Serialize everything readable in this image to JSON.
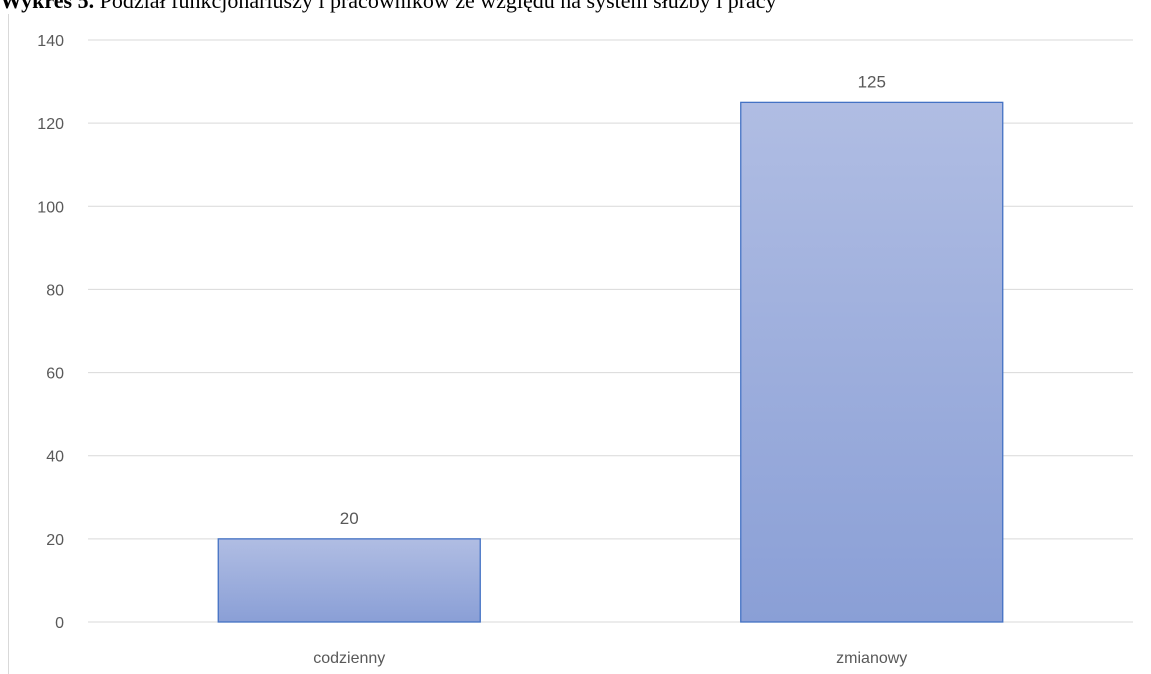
{
  "chart_title": {
    "prefix": "Wykres 5.",
    "text": " Podział funkcjonariuszy i pracowników ze względu na system służby i pracy"
  },
  "colors": {
    "bar_top": "#b0bde3",
    "bar_bottom": "#8a9fd6",
    "bar_border": "#4472c4",
    "grid": "#d9d9d9",
    "text": "#595959"
  },
  "chart_data": {
    "type": "bar",
    "title": "Wykres 5. Podział funkcjonariuszy i pracowników ze względu na system służby i pracy",
    "categories": [
      "codzienny",
      "zmianowy"
    ],
    "values": [
      20,
      125
    ],
    "data_labels": [
      "20",
      "125"
    ],
    "ylim": [
      0,
      140
    ],
    "yticks": [
      0,
      20,
      40,
      60,
      80,
      100,
      120,
      140
    ],
    "ytick_labels": [
      "0",
      "20",
      "40",
      "60",
      "80",
      "100",
      "120",
      "140"
    ],
    "grid": true,
    "legend": "none"
  }
}
